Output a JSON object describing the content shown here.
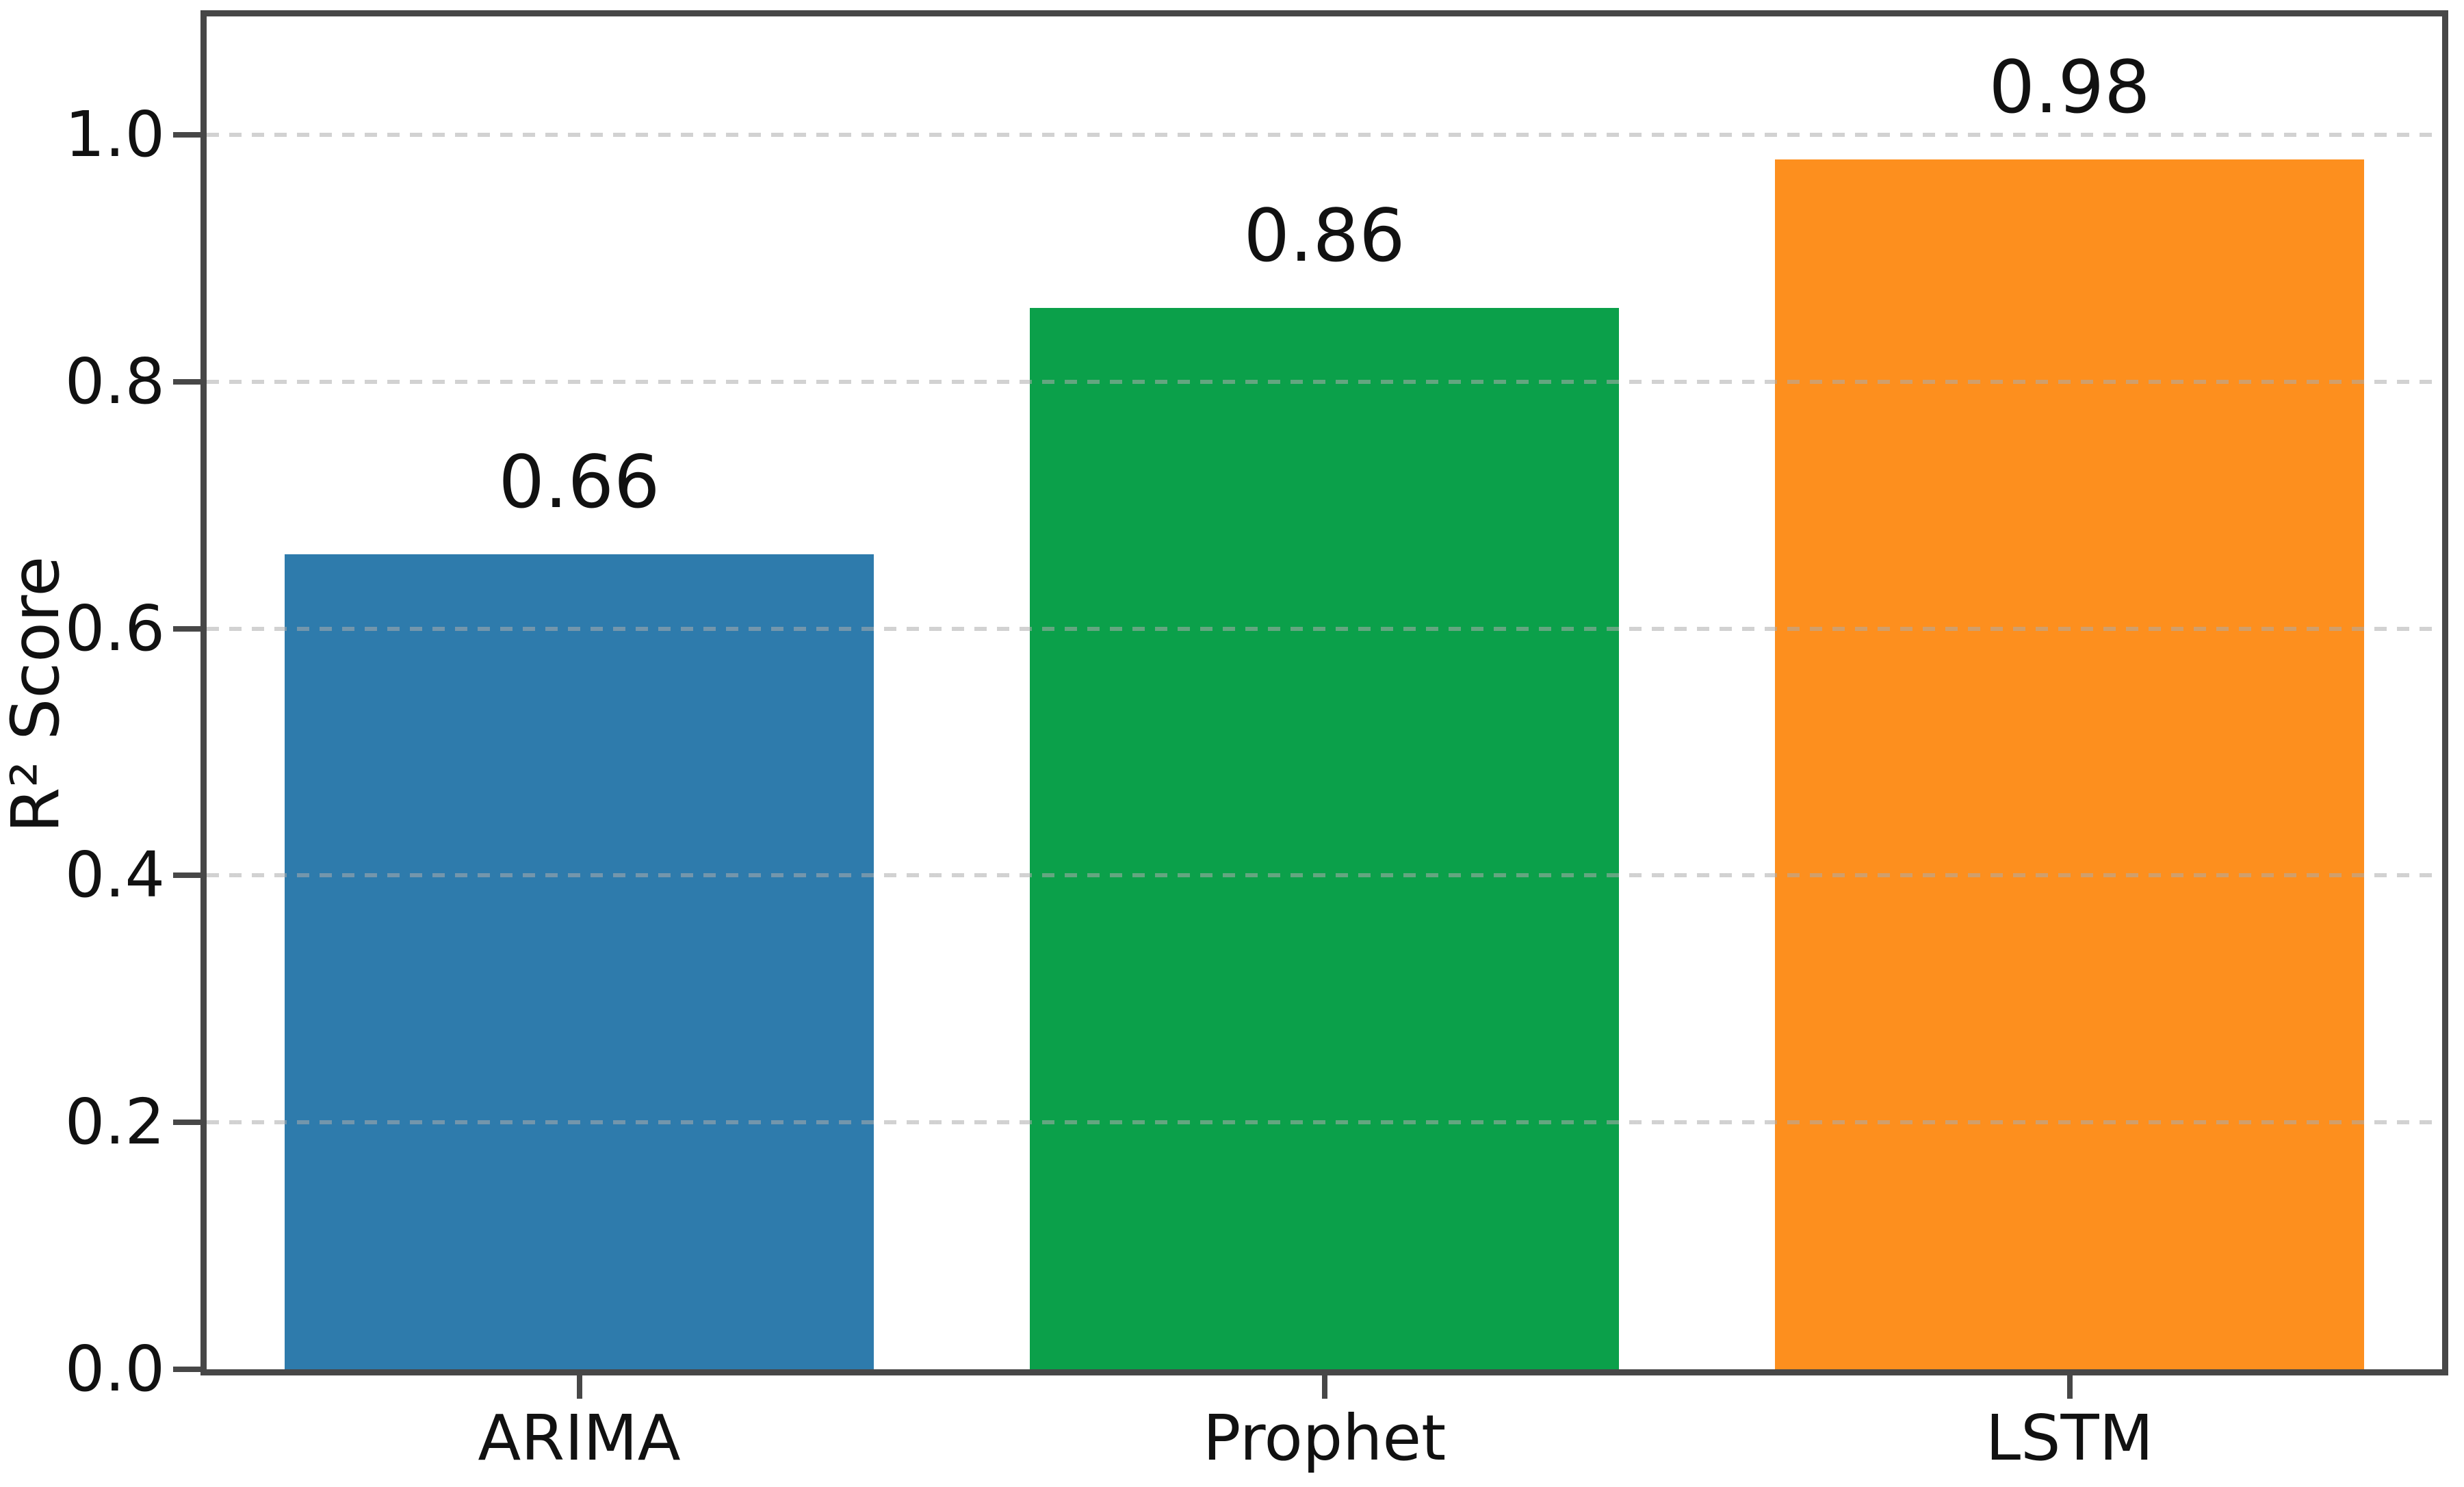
{
  "chart_data": {
    "type": "bar",
    "title": "",
    "xlabel": "",
    "ylabel": "R² Score",
    "categories": [
      "ARIMA",
      "Prophet",
      "LSTM"
    ],
    "values": [
      0.66,
      0.86,
      0.98
    ],
    "bar_labels": [
      "0.66",
      "0.86",
      "0.98"
    ],
    "bar_colors": [
      "#2E7BAC",
      "#0BA04A",
      "#FD8F1E"
    ],
    "ylim": [
      0,
      1.096
    ],
    "yticks": [
      {
        "value": 0.0,
        "label": "0.0"
      },
      {
        "value": 0.2,
        "label": "0.2"
      },
      {
        "value": 0.4,
        "label": "0.4"
      },
      {
        "value": 0.6,
        "label": "0.6"
      },
      {
        "value": 0.8,
        "label": "0.8"
      },
      {
        "value": 1.0,
        "label": "1.0"
      }
    ],
    "grid": "horizontal-dashed",
    "grid_on": true,
    "legend": "none",
    "bar_width_fraction": 0.79,
    "colors": {
      "spine": "#474747",
      "grid": "#d4d4d4",
      "text": "#111111",
      "background": "#ffffff"
    }
  }
}
